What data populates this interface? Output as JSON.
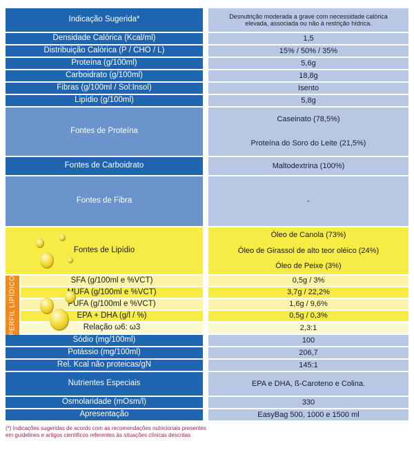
{
  "table": {
    "rows": [
      {
        "label": "Indicação Sugerida*",
        "value": "Desnutrição moderada a grave com necessidade calórica elevada, associada ou não à restrição hídrica."
      },
      {
        "label": "Densidade Calórica (Kcal/ml)",
        "value": "1,5"
      },
      {
        "label": "Distribuição Calórica (P / CHO / L)",
        "value": "15% / 50% / 35%"
      },
      {
        "label": "Proteína  (g/100ml)",
        "value": "5,6g"
      },
      {
        "label": "Carboidrato  (g/100ml)",
        "value": "18,8g"
      },
      {
        "label": "Fibras (g/100ml / Sol:Insol)",
        "value": "Isento"
      },
      {
        "label": "Lipídio  (g/100ml)",
        "value": "5,8g"
      },
      {
        "label": "Fontes de Proteína",
        "values": [
          "Caseinato (78,5%)",
          "Proteína do Soro do Leite (21,5%)"
        ]
      },
      {
        "label": "Fontes de Carboidrato",
        "value": "Maltodextrina (100%)"
      },
      {
        "label": "Fontes de Fibra",
        "value": "-"
      },
      {
        "label": "Fontes de Lipídio",
        "values": [
          "Óleo de Canola (73%)",
          "Óleo de Girassol de alto teor oléico (24%)",
          "Óleo de Peixe (3%)"
        ]
      },
      {
        "label": "SFA (g/100ml e %VCT)",
        "value": "0,5g / 3%"
      },
      {
        "label": "MUFA (g/100ml e %VCT)",
        "value": "3,7g / 22,2%"
      },
      {
        "label": "PUFA (g/100ml e %VCT)",
        "value": "1,6g / 9,6%"
      },
      {
        "label": "EPA + DHA (g/l / %)",
        "value": "0,5g / 0,3%"
      },
      {
        "label": "Relação   ω6: ω3",
        "value": "2,3:1"
      },
      {
        "label": "Sódio (mg/100ml)",
        "value": "100"
      },
      {
        "label": "Potássio (mg/100ml)",
        "value": "206,7"
      },
      {
        "label": "Rel. Kcal não proteicas/gN",
        "value": "145:1"
      },
      {
        "label": "Nutrientes Especiais",
        "value": "EPA e DHA,    ß-Caroteno e Colina."
      },
      {
        "label": "Osmolaridade (mOsm/l)",
        "value": "330"
      },
      {
        "label": "Apresentação",
        "value": "EasyBag 500, 1000 e 1500 ml"
      }
    ],
    "lipid_profile_label": "PERFIL LIPÍDICO"
  },
  "footnote": "(*) Indicações sugeridas de acordo com as recomendações nutricionais presentes em guidelines e artigos científicos referentes às situações clínicas descritas",
  "colors": {
    "blue_dark": "#1f64ae",
    "blue_med": "#6b93cc",
    "blue_light": "#b8c8e4",
    "yellow": "#f7ec45",
    "orange": "#f08a1f",
    "footnote_red": "#b01a4a"
  },
  "icons": [
    "oil-drop-icon"
  ]
}
